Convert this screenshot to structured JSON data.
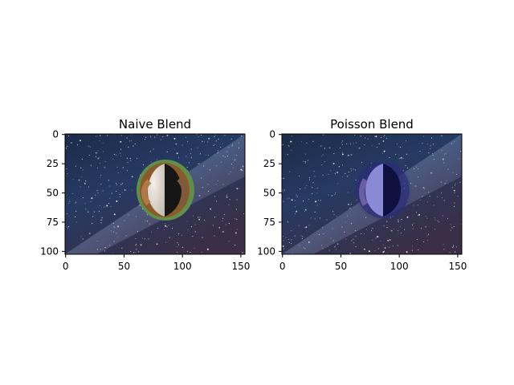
{
  "panels": [
    {
      "title": "Naive Blend",
      "x_ticks": [
        0,
        50,
        100,
        150
      ],
      "y_ticks": [
        0,
        25,
        50,
        75,
        100
      ],
      "x_range": [
        -0.5,
        153.5
      ],
      "y_range": [
        -0.5,
        102.5
      ],
      "blend": "naive"
    },
    {
      "title": "Poisson Blend",
      "x_ticks": [
        0,
        50,
        100,
        150
      ],
      "y_ticks": [
        0,
        25,
        50,
        75,
        100
      ],
      "x_range": [
        -0.5,
        153.5
      ],
      "y_range": [
        -0.5,
        102.5
      ],
      "blend": "poisson"
    }
  ],
  "colors": {
    "sky_top": "#1d2f4d",
    "sky_mid": "#2a3b63",
    "sky_bottom": "#3a2f47",
    "milky_way": "#6b7ea8",
    "guinea_pig_brown": "#8a5a2b",
    "guinea_pig_white": "#e8e2dc",
    "guinea_pig_black": "#161616",
    "green_border": "#5f8f4a",
    "poisson_tint": "#6a6fd1"
  }
}
